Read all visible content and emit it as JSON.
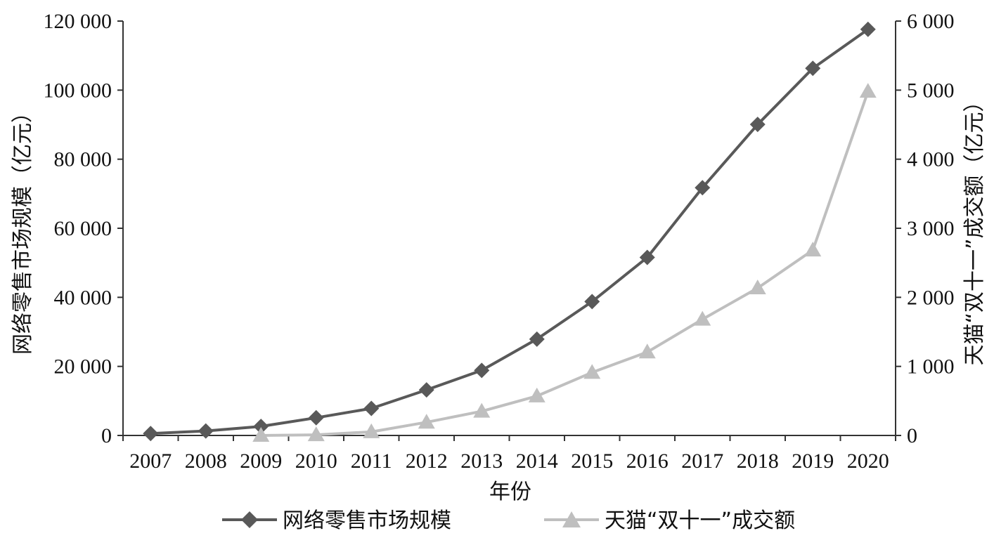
{
  "chart_data": {
    "type": "line",
    "x": [
      "2007",
      "2008",
      "2009",
      "2010",
      "2011",
      "2012",
      "2013",
      "2014",
      "2015",
      "2016",
      "2017",
      "2018",
      "2019",
      "2020"
    ],
    "xlabel": "年份",
    "ylabel_left": "网络零售市场规模（亿元）",
    "ylabel_right": "天猫“双十一”成交额（亿元）",
    "ylim_left": [
      0,
      120000
    ],
    "ylim_right": [
      0,
      6000
    ],
    "yticks_left": [
      "0",
      "20 000",
      "40 000",
      "60 000",
      "80 000",
      "100 000",
      "120 000"
    ],
    "yticks_right": [
      "0",
      "1 000",
      "2 000",
      "3 000",
      "4 000",
      "5 000",
      "6 000"
    ],
    "grid": false,
    "legend_position": "bottom",
    "series": [
      {
        "name": "网络零售市场规模",
        "axis": "left",
        "marker": "diamond",
        "color": "#595959",
        "values": [
          561,
          1300,
          2630,
          5131,
          7826,
          13205,
          18851,
          27898,
          38773,
          51556,
          71751,
          90065,
          106324,
          117601
        ]
      },
      {
        "name": "天猫“双十一”成交额",
        "axis": "right",
        "marker": "triangle",
        "color": "#bfbfbf",
        "values": [
          null,
          null,
          0.5,
          9.36,
          52,
          191,
          350,
          571,
          912,
          1207,
          1682,
          2135,
          2684,
          4982
        ]
      }
    ]
  }
}
